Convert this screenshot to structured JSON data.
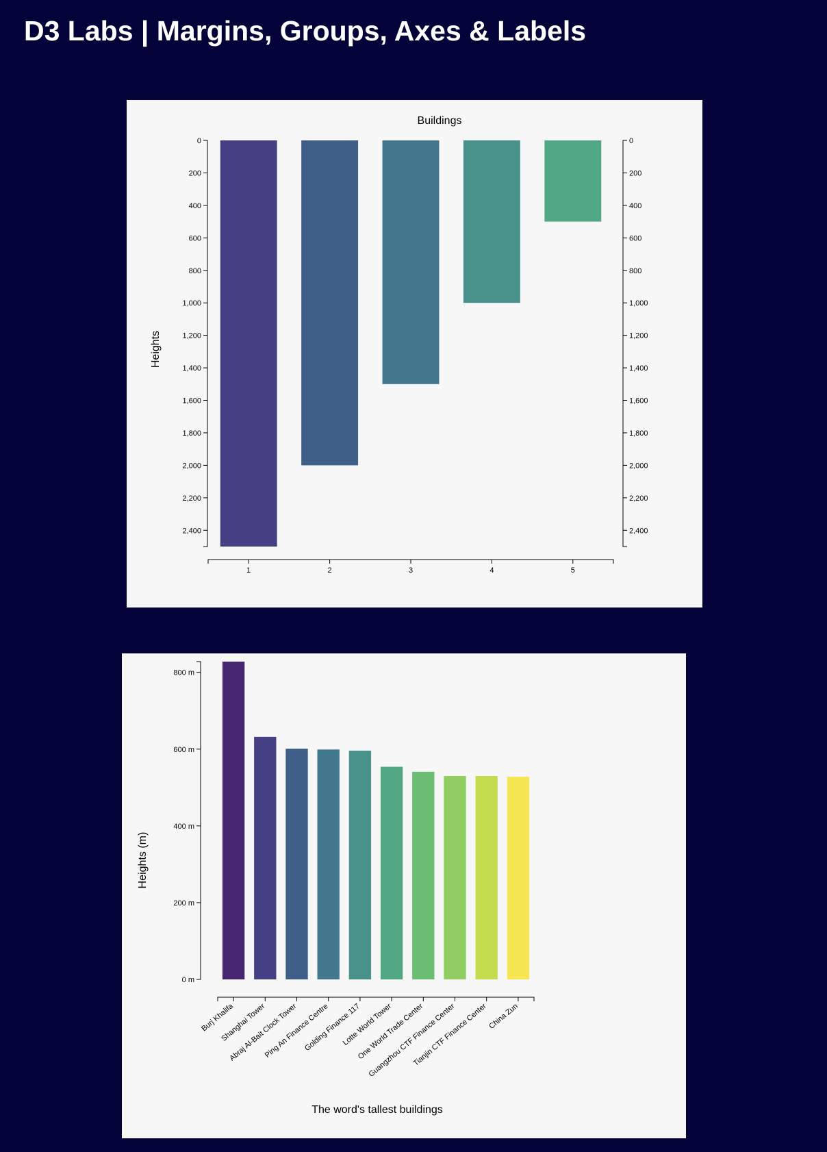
{
  "page": {
    "title": "D3 Labs | Margins, Groups, Axes & Labels"
  },
  "colors": {
    "page_background": "#03033a",
    "panel_background": "#f7f7f7"
  },
  "chart_data": [
    {
      "type": "bar",
      "title": "Buildings",
      "xlabel": "",
      "ylabel": "Heights",
      "y_direction": "downward",
      "right_axis": true,
      "categories": [
        "1",
        "2",
        "3",
        "4",
        "5"
      ],
      "values": [
        2500,
        2000,
        1500,
        1000,
        500
      ],
      "colors": [
        "#453f83",
        "#3e5d87",
        "#41788b",
        "#48918a",
        "#52a884"
      ],
      "ylim": [
        0,
        2500
      ],
      "yticks": [
        "0",
        "200",
        "400",
        "600",
        "800",
        "1,000",
        "1,200",
        "1,400",
        "1,600",
        "1,800",
        "2,000",
        "2,200",
        "2,400"
      ],
      "grid": false
    },
    {
      "type": "bar",
      "title": "",
      "xlabel": "The word's tallest buildings",
      "ylabel": "Heights (m)",
      "categories": [
        "Burj Khalifa",
        "Shanghai Tower",
        "Abraj Al-Bait Clock Tower",
        "Ping An Finance Centre",
        "Golding Finance 117",
        "Lotte World Tower",
        "One World Trade Center",
        "Guangzhou CTF Finance Center",
        "Tianjin CTF Finance Center",
        "China Zun"
      ],
      "values": [
        828,
        632,
        601,
        599,
        596,
        554,
        541,
        530,
        530,
        528
      ],
      "colors": [
        "#46266f",
        "#453f83",
        "#3e5d87",
        "#41788b",
        "#48918a",
        "#52a884",
        "#6cbd74",
        "#92cd61",
        "#c4dd4f",
        "#f7e653"
      ],
      "ylim": [
        0,
        828
      ],
      "yticks": [
        "0 m",
        "200 m",
        "400 m",
        "600 m",
        "800 m"
      ],
      "grid": false
    }
  ]
}
